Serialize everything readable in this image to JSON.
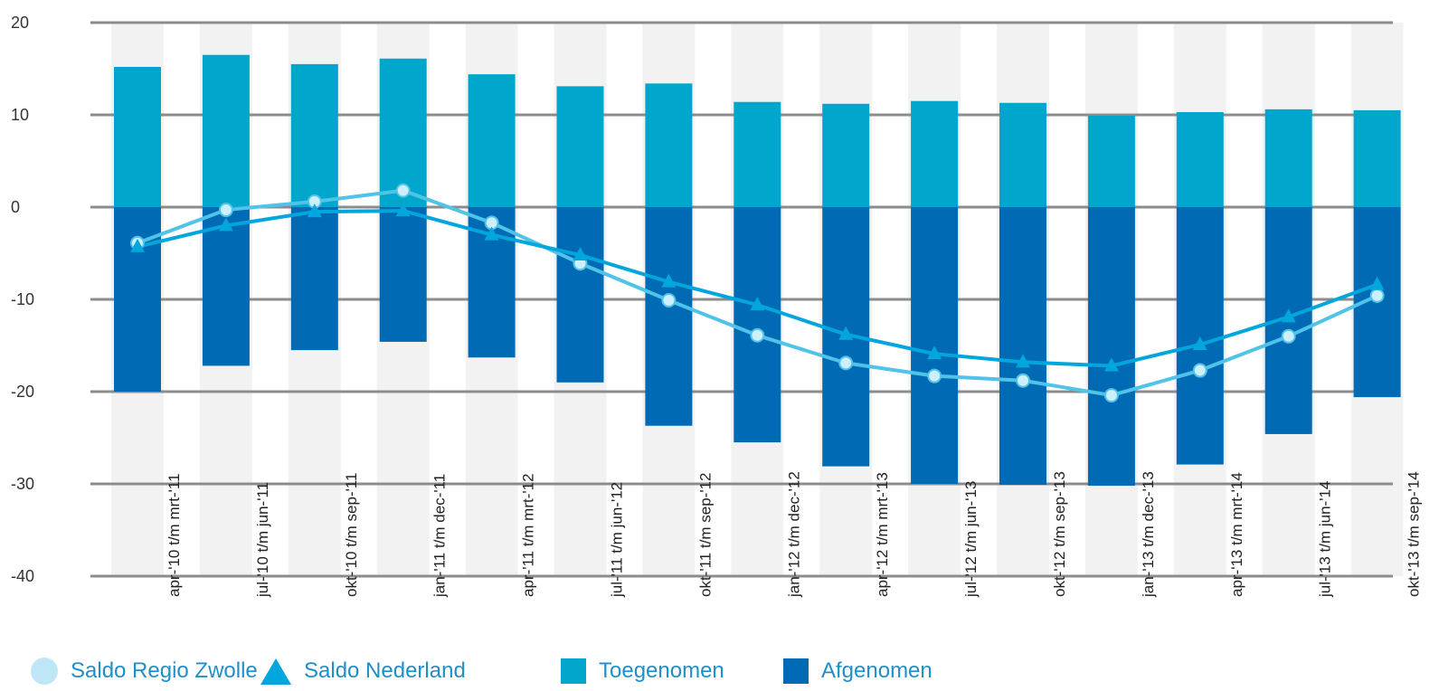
{
  "chart_data": {
    "type": "bar",
    "stacked": true,
    "categories": [
      "apr-'10 t/m mrt-'11",
      "jul-'10 t/m jun-'11",
      "okt-'10 t/m sep-'11",
      "jan-'11 t/m dec-'11",
      "apr-'11 t/m mrt-'12",
      "jul-'11 t/m jun-'12",
      "okt-'11 t/m sep-'12",
      "jan-'12 t/m dec-'12",
      "apr-'12 t/m mrt-'13",
      "jul-'12 t/m jun-'13",
      "okt-'12 t/m sep-'13",
      "jan-'13 t/m dec-'13",
      "apr-'13 t/m mrt-'14",
      "jul-'13 t/m jun-'14",
      "okt-'13 t/m sep-'14"
    ],
    "ylim": [
      -40,
      20
    ],
    "yticks": [
      20,
      10,
      0,
      -10,
      -20,
      -30,
      -40
    ],
    "grid": true,
    "legend_position": "bottom",
    "series": [
      {
        "name": "Toegenomen",
        "kind": "bar",
        "color": "#00a6cc",
        "values": [
          15.2,
          16.5,
          15.5,
          16.1,
          14.4,
          13.1,
          13.4,
          11.4,
          11.2,
          11.5,
          11.3,
          9.9,
          10.3,
          10.6,
          10.5
        ]
      },
      {
        "name": "Afgenomen",
        "kind": "bar",
        "color": "#006ab4",
        "values": [
          -20.0,
          -17.2,
          -15.5,
          -14.6,
          -16.3,
          -19.0,
          -23.7,
          -25.5,
          -28.1,
          -30.0,
          -30.1,
          -30.2,
          -27.9,
          -24.6,
          -20.6
        ]
      },
      {
        "name": "Saldo Regio Zwolle",
        "kind": "line",
        "marker": "circle",
        "color": "#4fc3e8",
        "values": [
          -3.9,
          -0.3,
          0.6,
          1.8,
          -1.7,
          -6.1,
          -10.1,
          -13.9,
          -16.9,
          -18.3,
          -18.8,
          -20.4,
          -17.7,
          -14.0,
          -9.6
        ]
      },
      {
        "name": "Saldo Nederland",
        "kind": "line",
        "marker": "triangle",
        "color": "#00a6dc",
        "values": [
          -4.3,
          -2.0,
          -0.5,
          -0.4,
          -3.0,
          -5.2,
          -8.1,
          -10.6,
          -13.8,
          -15.9,
          -16.8,
          -17.2,
          -14.9,
          -11.9,
          -8.4
        ]
      }
    ]
  },
  "legend": {
    "items": [
      {
        "label": "Saldo Regio Zwolle",
        "color": "#bfe6f7"
      },
      {
        "label": "Saldo Nederland",
        "color": "#00a6dc"
      },
      {
        "label": "Toegenomen",
        "color": "#00a6cc"
      },
      {
        "label": "Afgenomen",
        "color": "#006ab4"
      }
    ]
  }
}
